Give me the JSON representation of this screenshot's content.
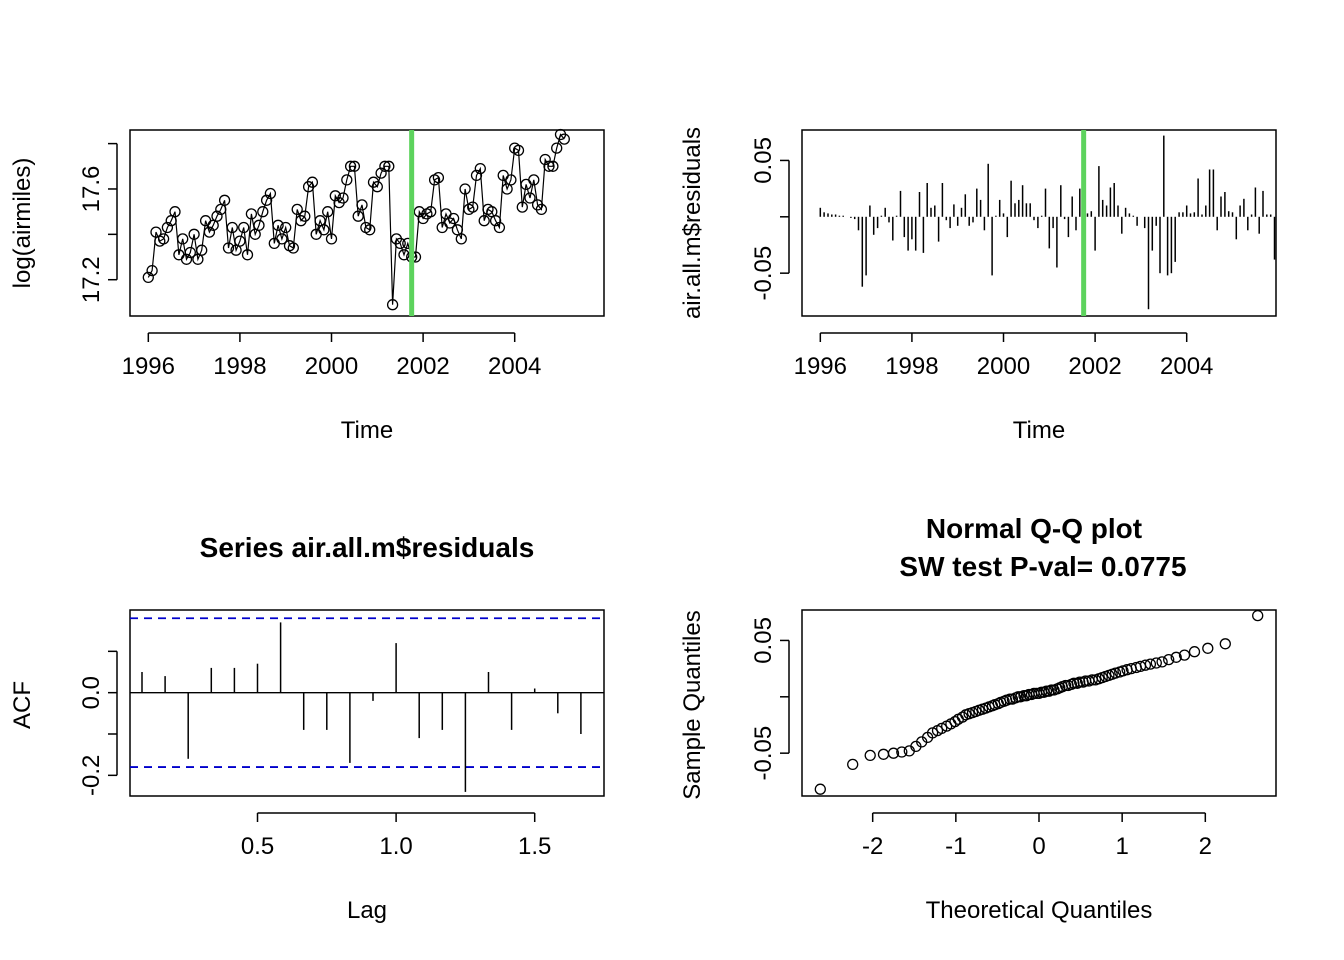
{
  "chart_data": [
    {
      "type": "line",
      "title": "",
      "xlabel": "Time",
      "ylabel": "log(airmiles)",
      "xlim": [
        1995.6,
        2005.95
      ],
      "ylim": [
        17.04,
        17.86
      ],
      "xticks": [
        1996,
        1998,
        2000,
        2002,
        2004
      ],
      "xtick_labels": [
        "1996",
        "1998",
        "2000",
        "2002",
        "2004"
      ],
      "yticks": [
        17.2,
        17.4,
        17.6,
        17.8
      ],
      "ytick_labels": [
        "17.2",
        "",
        "17.6",
        ""
      ],
      "markers": "open-circle",
      "vline": {
        "x": 2001.75,
        "color": "#5dd35d"
      },
      "series": [
        {
          "values": [
            17.21,
            17.24,
            17.41,
            17.37,
            17.38,
            17.43,
            17.46,
            17.5,
            17.31,
            17.38,
            17.29,
            17.32,
            17.4,
            17.29,
            17.33,
            17.46,
            17.41,
            17.44,
            17.48,
            17.51,
            17.55,
            17.34,
            17.43,
            17.33,
            17.37,
            17.43,
            17.31,
            17.49,
            17.4,
            17.44,
            17.5,
            17.55,
            17.58,
            17.36,
            17.44,
            17.38,
            17.43,
            17.35,
            17.34,
            17.51,
            17.46,
            17.48,
            17.61,
            17.63,
            17.4,
            17.46,
            17.42,
            17.5,
            17.38,
            17.57,
            17.54,
            17.56,
            17.64,
            17.7,
            17.7,
            17.48,
            17.53,
            17.43,
            17.42,
            17.63,
            17.61,
            17.67,
            17.7,
            17.7,
            17.09,
            17.38,
            17.36,
            17.31,
            17.36,
            17.3,
            17.3,
            17.5,
            17.47,
            17.49,
            17.5,
            17.64,
            17.65,
            17.43,
            17.49,
            17.45,
            17.47,
            17.42,
            17.38,
            17.6,
            17.51,
            17.52,
            17.66,
            17.69,
            17.46,
            17.51,
            17.5,
            17.46,
            17.43,
            17.66,
            17.6,
            17.64,
            17.78,
            17.77,
            17.52,
            17.62,
            17.56,
            17.64,
            17.53,
            17.51,
            17.73,
            17.7,
            17.7,
            17.78,
            17.84,
            17.82
          ]
        }
      ]
    },
    {
      "type": "bar",
      "title": "",
      "xlabel": "Time",
      "ylabel": "air.all.m$residuals",
      "xlim": [
        1995.6,
        2005.95
      ],
      "ylim": [
        -0.088,
        0.077
      ],
      "xticks": [
        1996,
        1998,
        2000,
        2002,
        2004
      ],
      "xtick_labels": [
        "1996",
        "1998",
        "2000",
        "2002",
        "2004"
      ],
      "yticks": [
        -0.05,
        0,
        0.05
      ],
      "ytick_labels": [
        "-0.05",
        "",
        "0.05"
      ],
      "vline": {
        "x": 2001.75,
        "color": "#5dd35d"
      },
      "series": [
        {
          "values": [
            0.008,
            0.004,
            0.003,
            0.002,
            0.002,
            0.001,
            0.001,
            0.0,
            -0.001,
            -0.002,
            -0.012,
            -0.062,
            -0.052,
            0.01,
            -0.016,
            -0.01,
            0.001,
            0.008,
            -0.005,
            -0.021,
            0.001,
            0.023,
            -0.018,
            -0.03,
            -0.02,
            -0.03,
            0.022,
            -0.032,
            0.03,
            0.008,
            0.01,
            -0.022,
            0.03,
            -0.003,
            -0.01,
            0.011,
            -0.008,
            0.008,
            0.02,
            -0.008,
            -0.005,
            0.025,
            0.015,
            -0.012,
            0.047,
            -0.052,
            0.001,
            0.015,
            0.003,
            -0.018,
            0.032,
            0.012,
            0.015,
            0.028,
            0.012,
            0.012,
            -0.003,
            -0.01,
            0.001,
            0.025,
            -0.028,
            -0.01,
            -0.045,
            0.028,
            -0.002,
            -0.018,
            0.018,
            -0.012,
            0.025,
            -0.006,
            0.003,
            0.005,
            -0.03,
            0.045,
            0.015,
            0.01,
            0.026,
            0.03,
            0.01,
            -0.015,
            0.008,
            0.003,
            0.001,
            -0.008,
            0.0,
            -0.01,
            -0.082,
            -0.03,
            -0.008,
            -0.05,
            0.072,
            -0.052,
            -0.05,
            -0.04,
            0.004,
            0.004,
            0.01,
            0.003,
            0.004,
            0.034,
            0.002,
            0.01,
            0.042,
            0.042,
            -0.012,
            0.018,
            0.022,
            0.005,
            0.004,
            -0.02,
            0.01,
            0.016,
            -0.012,
            0.002,
            0.026,
            -0.015,
            0.023,
            0.002,
            0.002,
            -0.038
          ]
        }
      ]
    },
    {
      "type": "bar",
      "title": "Series  air.all.m$residuals",
      "xlabel": "Lag",
      "ylabel": "ACF",
      "xlim": [
        0.04,
        1.75
      ],
      "ylim": [
        -0.25,
        0.2
      ],
      "xticks": [
        0.5,
        1.0,
        1.5
      ],
      "xtick_labels": [
        "0.5",
        "1.0",
        "1.5"
      ],
      "yticks": [
        -0.2,
        -0.1,
        0.0,
        0.1
      ],
      "ytick_labels": [
        "-0.2",
        "",
        "0.0",
        ""
      ],
      "ci": 0.18,
      "ci_color": "#0000cc",
      "x": [
        0.0833,
        0.1667,
        0.25,
        0.3333,
        0.4167,
        0.5,
        0.5833,
        0.6667,
        0.75,
        0.8333,
        0.9167,
        1.0,
        1.0833,
        1.1667,
        1.25,
        1.3333,
        1.4167,
        1.5,
        1.5833,
        1.6667
      ],
      "values": [
        0.05,
        0.04,
        -0.16,
        0.06,
        0.06,
        0.07,
        0.17,
        -0.09,
        -0.09,
        -0.17,
        -0.02,
        0.12,
        -0.11,
        -0.09,
        -0.24,
        0.05,
        -0.09,
        0.01,
        -0.05,
        -0.1
      ]
    },
    {
      "type": "scatter",
      "title": "Normal Q-Q plot",
      "subtitle": "SW test P-val= 0.0775",
      "xlabel": "Theoretical Quantiles",
      "ylabel": "Sample Quantiles",
      "xlim": [
        -2.85,
        2.85
      ],
      "ylim": [
        -0.088,
        0.077
      ],
      "xticks": [
        -2,
        -1,
        0,
        1,
        2
      ],
      "xtick_labels": [
        "-2",
        "-1",
        "0",
        "1",
        "2"
      ],
      "yticks": [
        -0.05,
        0,
        0.05
      ],
      "ytick_labels": [
        "-0.05",
        "",
        "0.05"
      ],
      "markers": "open-circle",
      "points": [
        [
          -2.63,
          -0.082
        ],
        [
          -2.24,
          -0.06
        ],
        [
          -2.03,
          -0.052
        ],
        [
          -1.87,
          -0.051
        ],
        [
          -1.75,
          -0.05
        ],
        [
          -1.65,
          -0.049
        ],
        [
          -1.56,
          -0.048
        ],
        [
          -1.48,
          -0.044
        ],
        [
          -1.41,
          -0.04
        ],
        [
          -1.34,
          -0.036
        ],
        [
          -1.28,
          -0.032
        ],
        [
          -1.22,
          -0.03
        ],
        [
          -1.17,
          -0.028
        ],
        [
          -1.11,
          -0.026
        ],
        [
          -1.06,
          -0.024
        ],
        [
          -1.01,
          -0.022
        ],
        [
          -0.97,
          -0.02
        ],
        [
          -0.92,
          -0.018
        ],
        [
          -0.88,
          -0.016
        ],
        [
          -0.84,
          -0.015
        ],
        [
          -0.8,
          -0.014
        ],
        [
          -0.76,
          -0.013
        ],
        [
          -0.72,
          -0.012
        ],
        [
          -0.68,
          -0.011
        ],
        [
          -0.64,
          -0.01
        ],
        [
          -0.6,
          -0.009
        ],
        [
          -0.56,
          -0.008
        ],
        [
          -0.53,
          -0.007
        ],
        [
          -0.49,
          -0.006
        ],
        [
          -0.46,
          -0.005
        ],
        [
          -0.42,
          -0.004
        ],
        [
          -0.39,
          -0.003
        ],
        [
          -0.35,
          -0.002
        ],
        [
          -0.32,
          -0.002
        ],
        [
          -0.28,
          -0.001
        ],
        [
          -0.25,
          0.0
        ],
        [
          -0.22,
          0.0
        ],
        [
          -0.18,
          0.001
        ],
        [
          -0.15,
          0.001
        ],
        [
          -0.12,
          0.002
        ],
        [
          -0.09,
          0.002
        ],
        [
          -0.06,
          0.003
        ],
        [
          -0.03,
          0.003
        ],
        [
          0.0,
          0.003
        ],
        [
          0.03,
          0.004
        ],
        [
          0.06,
          0.004
        ],
        [
          0.09,
          0.005
        ],
        [
          0.12,
          0.005
        ],
        [
          0.15,
          0.006
        ],
        [
          0.18,
          0.006
        ],
        [
          0.22,
          0.007
        ],
        [
          0.25,
          0.008
        ],
        [
          0.28,
          0.009
        ],
        [
          0.32,
          0.01
        ],
        [
          0.35,
          0.01
        ],
        [
          0.39,
          0.011
        ],
        [
          0.42,
          0.012
        ],
        [
          0.46,
          0.012
        ],
        [
          0.49,
          0.013
        ],
        [
          0.53,
          0.013
        ],
        [
          0.56,
          0.014
        ],
        [
          0.6,
          0.014
        ],
        [
          0.64,
          0.015
        ],
        [
          0.68,
          0.015
        ],
        [
          0.72,
          0.016
        ],
        [
          0.76,
          0.017
        ],
        [
          0.8,
          0.018
        ],
        [
          0.84,
          0.019
        ],
        [
          0.88,
          0.02
        ],
        [
          0.92,
          0.021
        ],
        [
          0.97,
          0.022
        ],
        [
          1.01,
          0.023
        ],
        [
          1.06,
          0.024
        ],
        [
          1.11,
          0.025
        ],
        [
          1.17,
          0.026
        ],
        [
          1.22,
          0.027
        ],
        [
          1.28,
          0.028
        ],
        [
          1.34,
          0.029
        ],
        [
          1.41,
          0.03
        ],
        [
          1.48,
          0.031
        ],
        [
          1.56,
          0.033
        ],
        [
          1.65,
          0.035
        ],
        [
          1.75,
          0.037
        ],
        [
          1.87,
          0.04
        ],
        [
          2.03,
          0.043
        ],
        [
          2.24,
          0.047
        ],
        [
          2.63,
          0.072
        ]
      ]
    }
  ]
}
